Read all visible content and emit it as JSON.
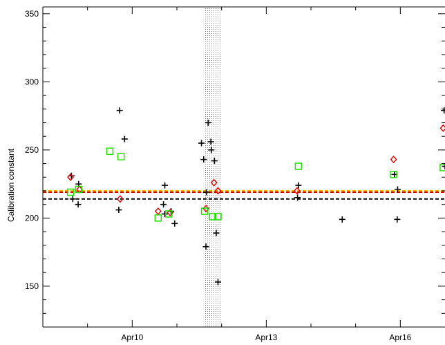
{
  "chart_data": {
    "type": "scatter",
    "title": "",
    "xlabel": "",
    "ylabel": "Calibration constant",
    "xlim": [
      8.0,
      17.0
    ],
    "ylim": [
      120,
      355
    ],
    "grid": false,
    "x_ticks": [
      {
        "x": 10,
        "label": "Apr10"
      },
      {
        "x": 13,
        "label": "Apr13"
      },
      {
        "x": 16,
        "label": "Apr16"
      }
    ],
    "x_minor_ticks": [
      9,
      11,
      12,
      14,
      15
    ],
    "y_ticks": [
      150,
      200,
      250,
      300,
      350
    ],
    "y_minor_tick_step": 10,
    "shaded_band": {
      "x_from": 11.6,
      "x_to": 12.0,
      "pattern": "dotted",
      "color": "#888888"
    },
    "hlines": [
      {
        "y": 220,
        "color": "#e5b800",
        "style": "dashed"
      },
      {
        "y": 219,
        "color": "#cc0000",
        "style": "dashed"
      },
      {
        "y": 214,
        "color": "#000000",
        "style": "dashed"
      }
    ],
    "series": [
      {
        "marker": "plus",
        "color": "#000000",
        "points": [
          [
            8.64,
            231
          ],
          [
            8.67,
            214
          ],
          [
            8.8,
            225
          ],
          [
            8.79,
            210
          ],
          [
            9.72,
            279
          ],
          [
            9.83,
            258
          ],
          [
            9.7,
            206
          ],
          [
            10.73,
            224
          ],
          [
            10.7,
            210
          ],
          [
            10.73,
            203
          ],
          [
            10.87,
            205
          ],
          [
            10.95,
            196
          ],
          [
            11.55,
            255
          ],
          [
            11.6,
            243
          ],
          [
            11.66,
            219
          ],
          [
            11.7,
            270
          ],
          [
            11.76,
            256
          ],
          [
            11.77,
            250
          ],
          [
            11.84,
            242
          ],
          [
            11.65,
            179
          ],
          [
            11.88,
            189
          ],
          [
            11.92,
            153
          ],
          [
            13.7,
            215
          ],
          [
            13.72,
            224
          ],
          [
            14.7,
            199
          ],
          [
            15.87,
            232
          ],
          [
            15.94,
            221
          ],
          [
            15.93,
            199
          ],
          [
            16.98,
            279
          ],
          [
            17.0,
            238
          ]
        ]
      },
      {
        "marker": "diamond",
        "color": "#dd0000",
        "points": [
          [
            8.62,
            230
          ],
          [
            8.82,
            221
          ],
          [
            9.73,
            214
          ],
          [
            10.58,
            205
          ],
          [
            10.85,
            204
          ],
          [
            11.65,
            207
          ],
          [
            11.83,
            226
          ],
          [
            11.92,
            220
          ],
          [
            13.69,
            220
          ],
          [
            15.85,
            243
          ],
          [
            16.96,
            266
          ]
        ]
      },
      {
        "marker": "square",
        "color": "#22dd00",
        "points": [
          [
            8.62,
            219
          ],
          [
            8.8,
            221
          ],
          [
            9.5,
            249
          ],
          [
            9.75,
            245
          ],
          [
            10.58,
            200
          ],
          [
            10.82,
            203
          ],
          [
            11.62,
            205
          ],
          [
            11.8,
            201
          ],
          [
            11.92,
            201
          ],
          [
            13.72,
            238
          ],
          [
            15.85,
            232
          ],
          [
            16.96,
            237
          ]
        ]
      }
    ]
  }
}
